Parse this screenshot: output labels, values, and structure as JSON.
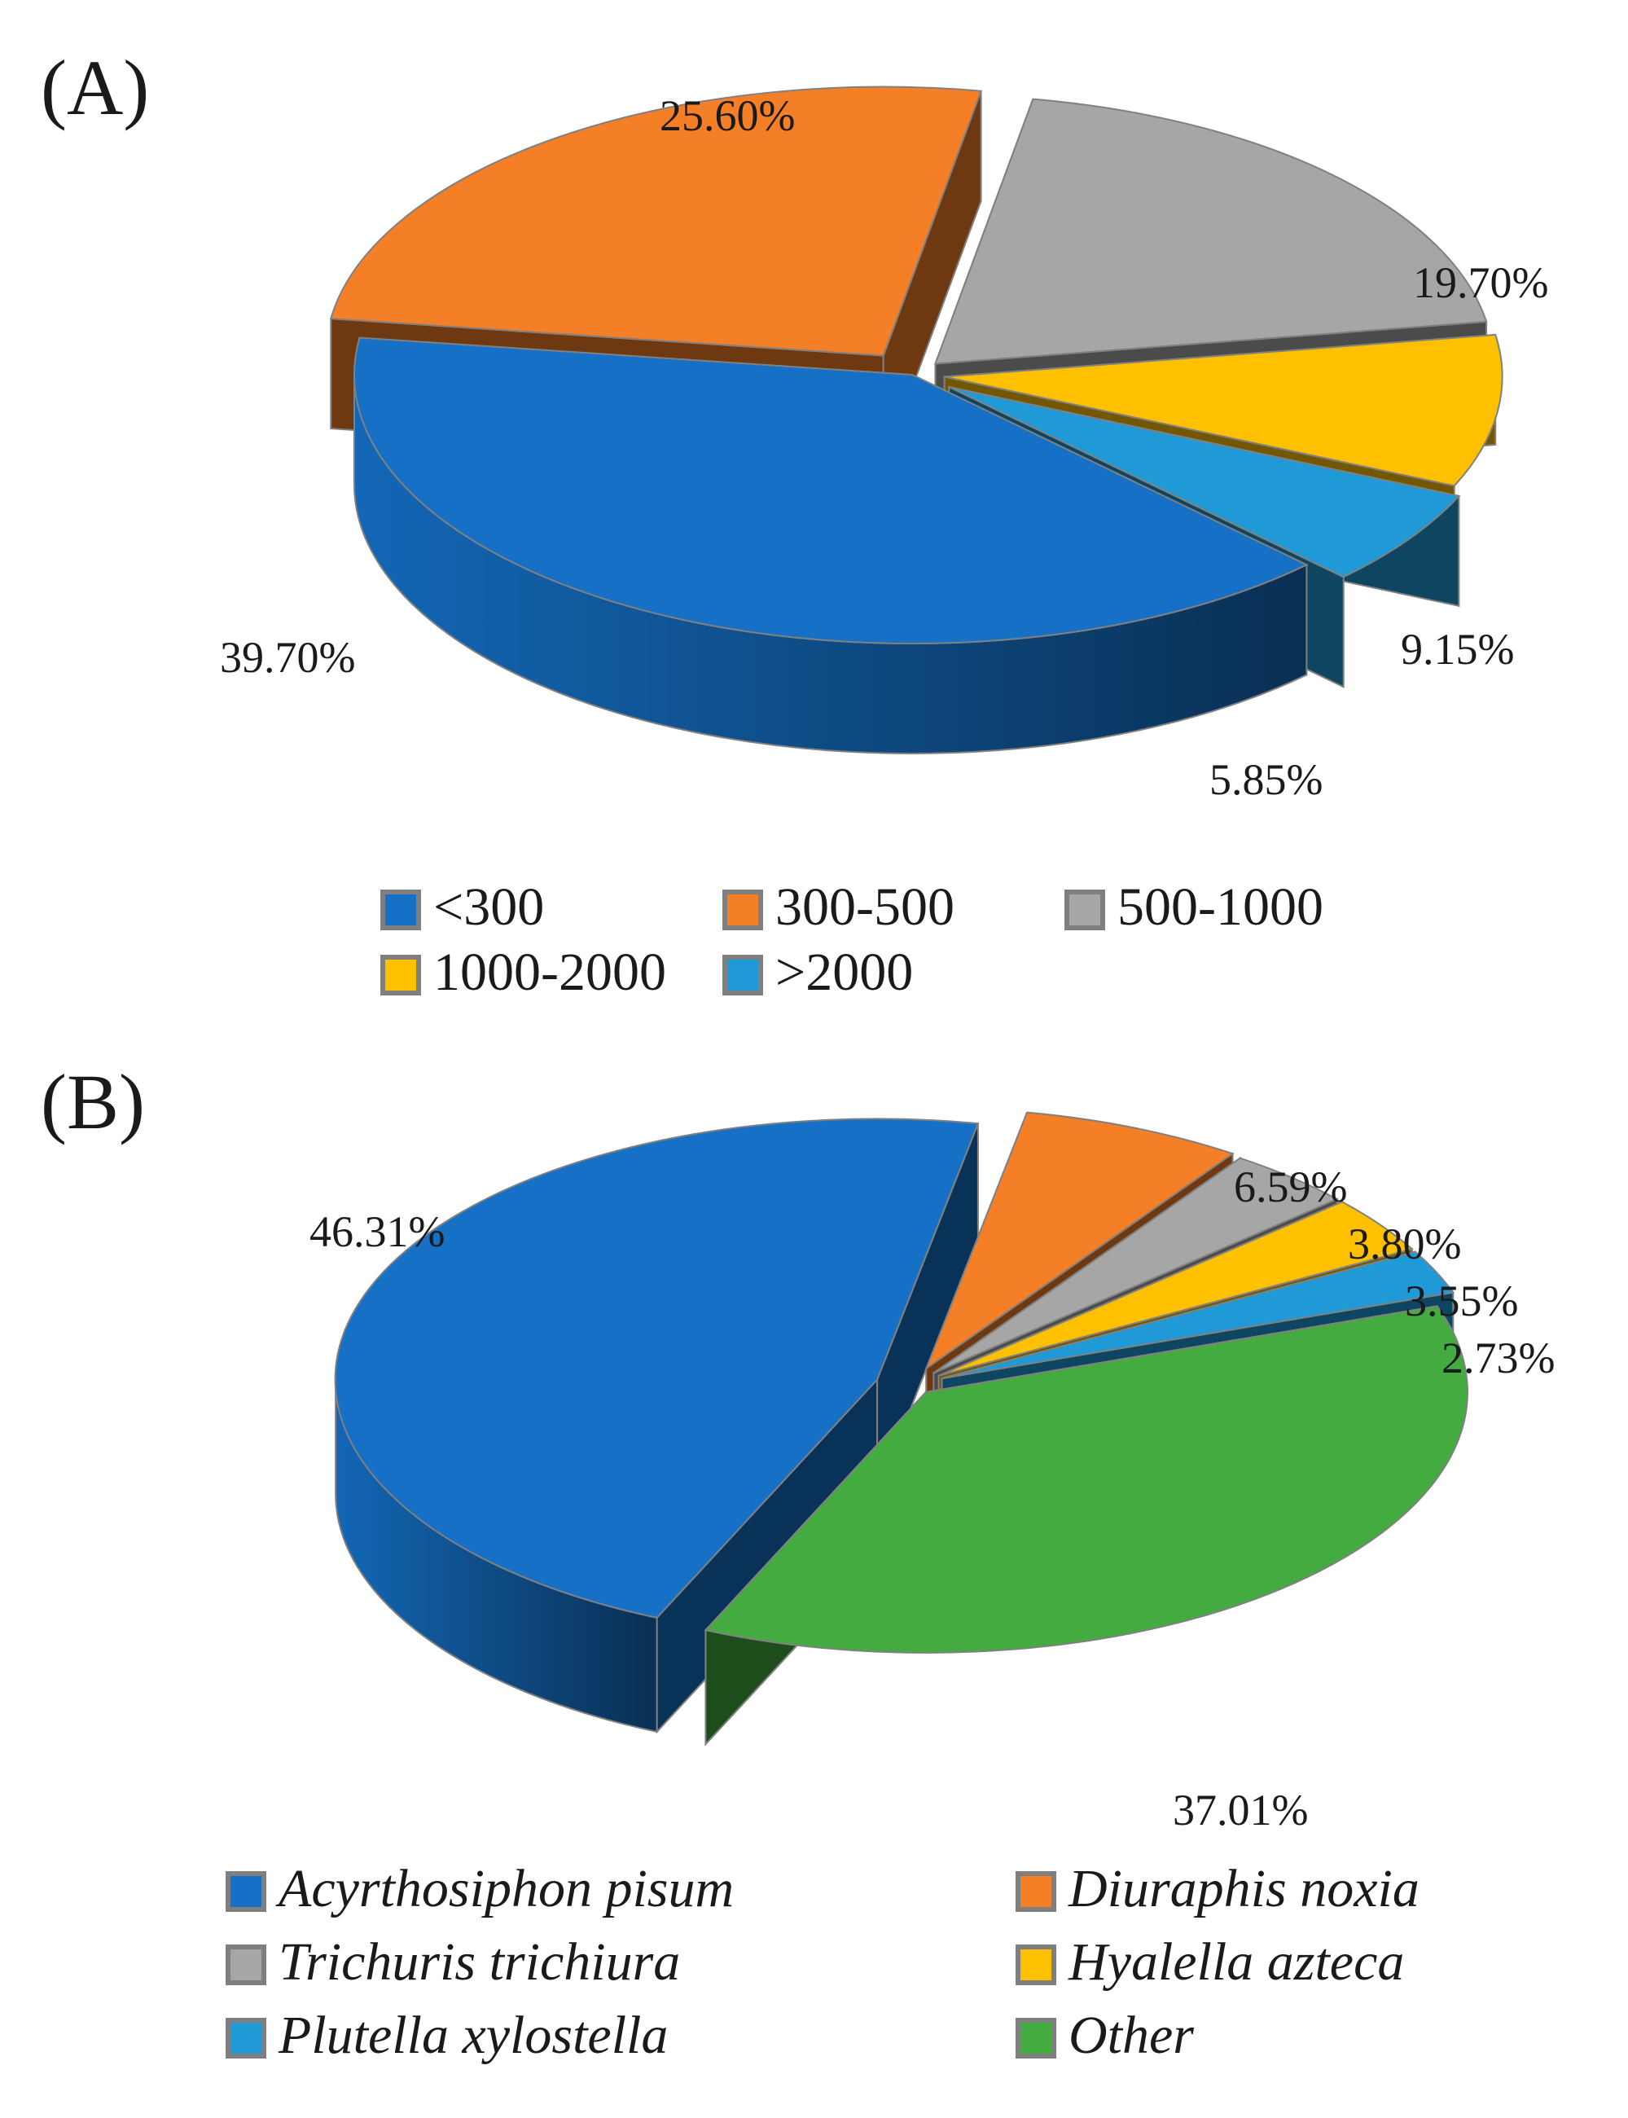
{
  "chart_data": [
    {
      "type": "pie",
      "panel_label": "(A)",
      "title": "",
      "style": "3d-exploded",
      "categories": [
        "<300",
        "300-500",
        "500-1000",
        "1000-2000",
        ">2000"
      ],
      "values": [
        39.7,
        25.6,
        19.7,
        9.15,
        5.85
      ],
      "data_labels": [
        "39.70%",
        "25.60%",
        "19.70%",
        "9.15%",
        "5.85%"
      ],
      "colors": [
        "#1570c6",
        "#f57f26",
        "#a6a6a6",
        "#ffc000",
        "#1f9ad6"
      ],
      "legend_position": "bottom",
      "legend_italic": false
    },
    {
      "type": "pie",
      "panel_label": "(B)",
      "title": "",
      "style": "3d-exploded",
      "categories": [
        "Acyrthosiphon pisum",
        "Diuraphis noxia",
        "Trichuris trichiura",
        "Hyalella azteca",
        "Plutella xylostella",
        "Other"
      ],
      "values": [
        46.31,
        6.59,
        3.8,
        3.55,
        2.73,
        37.01
      ],
      "data_labels": [
        "46.31%",
        "6.59%",
        "3.80%",
        "3.55%",
        "2.73%",
        "37.01%"
      ],
      "colors": [
        "#1570c6",
        "#f57f26",
        "#a6a6a6",
        "#ffc000",
        "#1f9ad6",
        "#43ab3f"
      ],
      "legend_position": "bottom",
      "legend_italic": true
    }
  ]
}
